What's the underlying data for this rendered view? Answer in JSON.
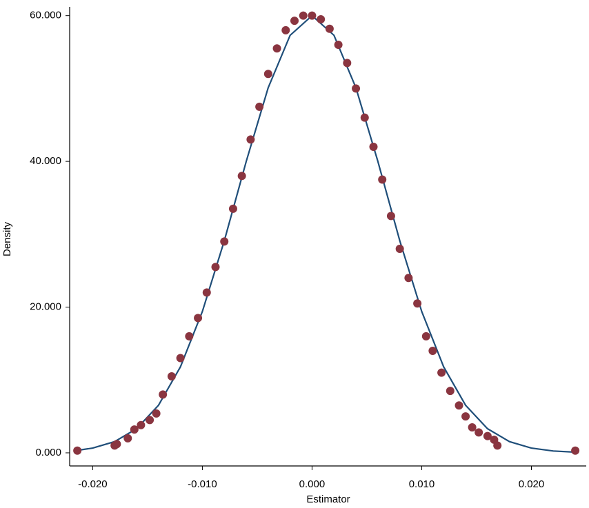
{
  "chart_data": {
    "type": "scatter",
    "xlabel": "Estimator",
    "ylabel": "Density",
    "color": "#8a3540",
    "x": [
      -0.0214,
      -0.018,
      -0.0178,
      -0.0168,
      -0.0162,
      -0.0156,
      -0.0148,
      -0.0142,
      -0.0136,
      -0.0128,
      -0.012,
      -0.0112,
      -0.0104,
      -0.0096,
      -0.0088,
      -0.008,
      -0.0072,
      -0.0064,
      -0.0056,
      -0.0048,
      -0.004,
      -0.0032,
      -0.0024,
      -0.0016,
      -0.0008,
      0,
      0.0008,
      0.0016,
      0.0024,
      0.0032,
      0.004,
      0.0048,
      0.0056,
      0.0064,
      0.0072,
      0.008,
      0.0088,
      0.0096,
      0.0104,
      0.011,
      0.0118,
      0.0126,
      0.0134,
      0.014,
      0.0146,
      0.0152,
      0.016,
      0.0166,
      0.0169,
      0.024
    ],
    "values": [
      0.3,
      1.0,
      1.2,
      2.0,
      3.2,
      3.8,
      4.5,
      5.4,
      8.0,
      10.5,
      13.0,
      16.0,
      18.5,
      22.0,
      25.5,
      29.0,
      33.5,
      38.0,
      43.0,
      47.5,
      52.0,
      55.5,
      58.0,
      59.3,
      60.0,
      60.0,
      59.5,
      58.2,
      56.0,
      53.5,
      50.0,
      46.0,
      42.0,
      37.5,
      32.5,
      28.0,
      24.0,
      20.5,
      16.0,
      14.0,
      11.0,
      8.5,
      6.5,
      5.0,
      3.5,
      2.8,
      2.3,
      1.8,
      1.0,
      0.3
    ],
    "curve": {
      "type": "line",
      "color": "#1f4e79",
      "x": [
        -0.0214,
        -0.02,
        -0.018,
        -0.016,
        -0.014,
        -0.012,
        -0.01,
        -0.008,
        -0.006,
        -0.004,
        -0.002,
        0,
        0.002,
        0.004,
        0.006,
        0.008,
        0.01,
        0.012,
        0.014,
        0.016,
        0.018,
        0.02,
        0.022,
        0.024
      ],
      "values": [
        0.34,
        0.65,
        1.54,
        3.31,
        6.53,
        11.8,
        19.4,
        29.1,
        40.0,
        50.1,
        57.3,
        60,
        57.3,
        50.1,
        40.0,
        29.1,
        19.4,
        11.8,
        6.53,
        3.31,
        1.54,
        0.65,
        0.25,
        0.09
      ]
    },
    "xlim": [
      -0.0221,
      0.025
    ],
    "ylim": [
      -1.8,
      61.2
    ],
    "xticks": [
      {
        "value": -0.02,
        "label": "-0.020"
      },
      {
        "value": -0.01,
        "label": "-0.010"
      },
      {
        "value": 0,
        "label": "0.000"
      },
      {
        "value": 0.01,
        "label": "0.010"
      },
      {
        "value": 0.02,
        "label": "0.020"
      }
    ],
    "yticks": [
      {
        "value": 0,
        "label": "0.000"
      },
      {
        "value": 20,
        "label": "20.000"
      },
      {
        "value": 40,
        "label": "40.000"
      },
      {
        "value": 60,
        "label": "60.000"
      }
    ]
  }
}
